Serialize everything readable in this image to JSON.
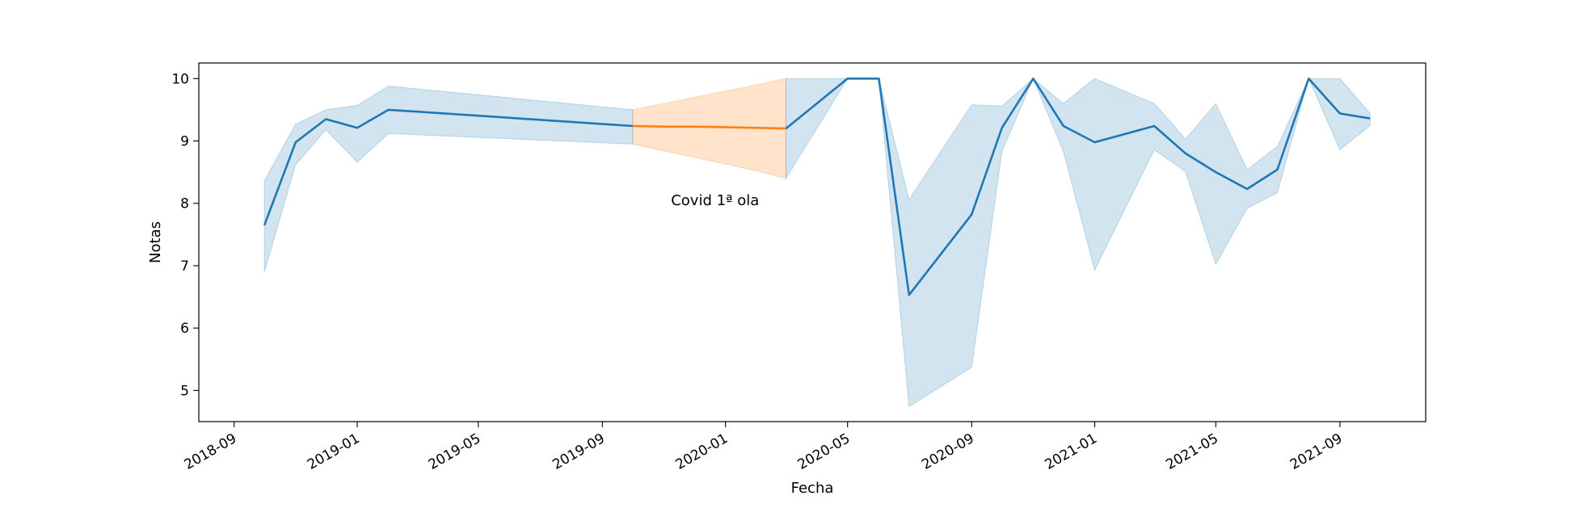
{
  "chart_data": {
    "type": "line",
    "title": "",
    "xlabel": "Fecha",
    "ylabel": "Notas",
    "x_ticks": [
      "2018-09",
      "2019-01",
      "2019-05",
      "2019-09",
      "2020-01",
      "2020-05",
      "2020-09",
      "2021-01",
      "2021-05",
      "2021-09"
    ],
    "y_ticks": [
      5,
      6,
      7,
      8,
      9,
      10
    ],
    "xlim": [
      "2018-07-28",
      "2021-11-25"
    ],
    "ylim": [
      4.5,
      10.25
    ],
    "grid": false,
    "legend": "none",
    "annotation": {
      "text": "Covid 1ª ola",
      "date": "2019-11-08",
      "value": 8.05
    },
    "colors": {
      "main": "#1f77b4",
      "covid": "#ff7f0e",
      "main_band": "#1f77b4",
      "covid_band": "#ff7f0e"
    },
    "series": [
      {
        "segment": "main",
        "x": [
          "2018-10-01",
          "2018-11-01",
          "2018-12-01",
          "2019-01-01",
          "2019-02-01",
          "2019-10-01"
        ],
        "y": [
          7.65,
          8.98,
          9.35,
          9.21,
          9.5,
          9.24
        ],
        "lower": [
          6.9,
          8.62,
          9.18,
          8.66,
          9.12,
          8.95
        ],
        "upper": [
          8.36,
          9.27,
          9.5,
          9.57,
          9.88,
          9.5
        ]
      },
      {
        "segment": "covid",
        "x": [
          "2019-10-01",
          "2019-11-01",
          "2019-12-01",
          "2020-01-01",
          "2020-02-01",
          "2020-03-01"
        ],
        "y": [
          9.24,
          9.23,
          9.23,
          9.22,
          9.21,
          9.2
        ],
        "lower": [
          8.95,
          8.84,
          8.74,
          8.63,
          8.52,
          8.4
        ],
        "upper": [
          9.5,
          9.6,
          9.7,
          9.8,
          9.9,
          10.0
        ]
      },
      {
        "segment": "main",
        "x": [
          "2020-03-01",
          "2020-05-01",
          "2020-06-01",
          "2020-07-01",
          "2020-09-01",
          "2020-10-01",
          "2020-11-01",
          "2020-12-01",
          "2021-01-01",
          "2021-03-01",
          "2021-04-01",
          "2021-05-01",
          "2021-06-01",
          "2021-07-01",
          "2021-08-01",
          "2021-09-01",
          "2021-10-01"
        ],
        "y": [
          9.2,
          10.0,
          10.0,
          6.53,
          7.82,
          9.21,
          10.0,
          9.24,
          8.98,
          9.24,
          8.8,
          8.5,
          8.23,
          8.54,
          10.0,
          9.44,
          9.36
        ],
        "lower": [
          8.4,
          10.0,
          10.0,
          4.74,
          5.37,
          8.83,
          10.0,
          8.83,
          6.93,
          8.86,
          8.51,
          7.02,
          7.92,
          8.17,
          10.0,
          8.86,
          9.25
        ],
        "upper": [
          10.0,
          10.0,
          10.0,
          8.06,
          9.58,
          9.56,
          10.0,
          9.6,
          10.0,
          9.6,
          9.03,
          9.6,
          8.54,
          8.91,
          10.0,
          10.0,
          9.44
        ]
      }
    ]
  }
}
